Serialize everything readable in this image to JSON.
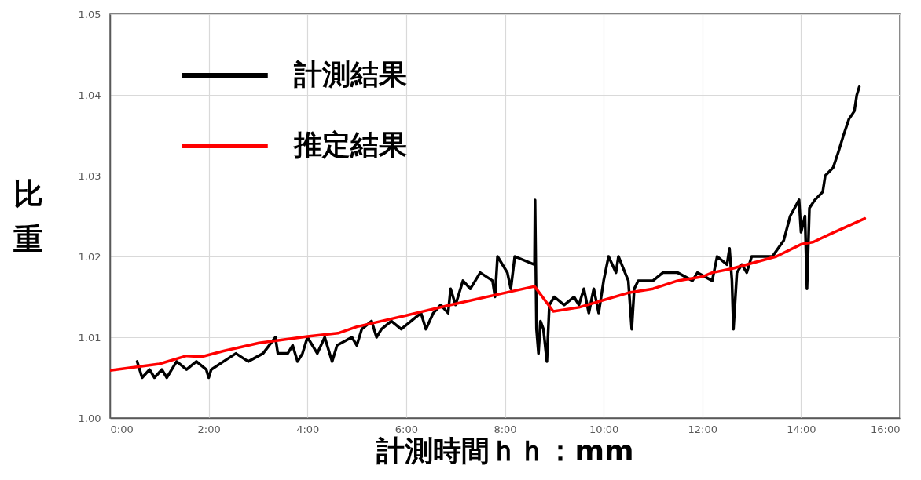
{
  "chart_data": {
    "type": "line",
    "xlabel": "計測時間ｈｈ：mm",
    "ylabel": "比重",
    "xlim": [
      0,
      16
    ],
    "xticks": [
      {
        "value": 0,
        "label": "0:00"
      },
      {
        "value": 2,
        "label": "2:00"
      },
      {
        "value": 4,
        "label": "4:00"
      },
      {
        "value": 6,
        "label": "6:00"
      },
      {
        "value": 8,
        "label": "8:00"
      },
      {
        "value": 10,
        "label": "10:00"
      },
      {
        "value": 12,
        "label": "12:00"
      },
      {
        "value": 14,
        "label": "14:00"
      },
      {
        "value": 16,
        "label": "16:00"
      }
    ],
    "ylim": [
      1.0,
      1.05
    ],
    "yticks": [
      {
        "value": 1.0,
        "label": "1.00"
      },
      1.01,
      1.02,
      1.03,
      1.04,
      1.05
    ],
    "grid": true,
    "legend": "top left",
    "series": [
      {
        "name": "計測結果",
        "color": "#000000",
        "x": [
          0.55,
          0.6,
          0.65,
          0.8,
          0.9,
          1.05,
          1.15,
          1.25,
          1.35,
          1.55,
          1.75,
          1.95,
          2.0,
          2.05,
          2.3,
          2.55,
          2.8,
          3.1,
          3.35,
          3.4,
          3.6,
          3.7,
          3.8,
          3.9,
          4.0,
          4.2,
          4.35,
          4.5,
          4.6,
          4.9,
          5.0,
          5.1,
          5.3,
          5.4,
          5.5,
          5.7,
          5.9,
          6.1,
          6.3,
          6.4,
          6.55,
          6.7,
          6.85,
          6.9,
          7.0,
          7.15,
          7.3,
          7.5,
          7.75,
          7.8,
          7.85,
          8.05,
          8.12,
          8.2,
          8.6,
          8.61,
          8.64,
          8.68,
          8.72,
          8.78,
          8.85,
          8.9,
          9.0,
          9.2,
          9.4,
          9.5,
          9.6,
          9.7,
          9.8,
          9.9,
          10.0,
          10.1,
          10.25,
          10.3,
          10.5,
          10.57,
          10.62,
          10.7,
          11.0,
          11.2,
          11.5,
          11.8,
          11.9,
          12.2,
          12.3,
          12.5,
          12.55,
          12.6,
          12.63,
          12.7,
          12.8,
          12.9,
          13.0,
          13.42,
          13.65,
          13.78,
          13.96,
          14.0,
          14.08,
          14.12,
          14.17,
          14.28,
          14.44,
          14.49,
          14.65,
          14.76,
          14.86,
          14.97,
          15.08,
          15.13,
          15.18
        ],
        "values": [
          1.007,
          1.006,
          1.005,
          1.006,
          1.005,
          1.006,
          1.005,
          1.006,
          1.007,
          1.006,
          1.007,
          1.006,
          1.005,
          1.006,
          1.007,
          1.008,
          1.007,
          1.008,
          1.01,
          1.008,
          1.008,
          1.009,
          1.007,
          1.008,
          1.01,
          1.008,
          1.01,
          1.007,
          1.009,
          1.01,
          1.009,
          1.011,
          1.012,
          1.01,
          1.011,
          1.012,
          1.011,
          1.012,
          1.013,
          1.011,
          1.013,
          1.014,
          1.013,
          1.016,
          1.014,
          1.017,
          1.016,
          1.018,
          1.017,
          1.015,
          1.02,
          1.018,
          1.016,
          1.02,
          1.019,
          1.027,
          1.011,
          1.008,
          1.012,
          1.011,
          1.007,
          1.014,
          1.015,
          1.014,
          1.015,
          1.014,
          1.016,
          1.013,
          1.016,
          1.013,
          1.017,
          1.02,
          1.018,
          1.02,
          1.017,
          1.011,
          1.016,
          1.017,
          1.017,
          1.018,
          1.018,
          1.017,
          1.018,
          1.017,
          1.02,
          1.019,
          1.021,
          1.017,
          1.011,
          1.018,
          1.019,
          1.018,
          1.02,
          1.02,
          1.022,
          1.025,
          1.027,
          1.023,
          1.025,
          1.016,
          1.026,
          1.027,
          1.028,
          1.03,
          1.031,
          1.033,
          1.035,
          1.037,
          1.038,
          1.04,
          1.041
        ]
      },
      {
        "name": "推定結果",
        "color": "#ff0000",
        "x": [
          0,
          1.0,
          1.55,
          1.86,
          2.3,
          3.02,
          4.0,
          4.62,
          5.0,
          6.0,
          6.2,
          6.9,
          8.0,
          8.6,
          8.98,
          9.5,
          10.5,
          11.0,
          11.5,
          12.0,
          12.2,
          12.6,
          13.5,
          14.0,
          14.25,
          14.6,
          15.29
        ],
        "values": [
          1.0059,
          1.0067,
          1.0077,
          1.0076,
          1.0083,
          1.0093,
          1.0101,
          1.0105,
          1.0113,
          1.0127,
          1.013,
          1.014,
          1.0155,
          1.0163,
          1.0132,
          1.0137,
          1.0155,
          1.016,
          1.017,
          1.0175,
          1.018,
          1.0185,
          1.02,
          1.0215,
          1.0218,
          1.0228,
          1.0247
        ]
      }
    ]
  }
}
